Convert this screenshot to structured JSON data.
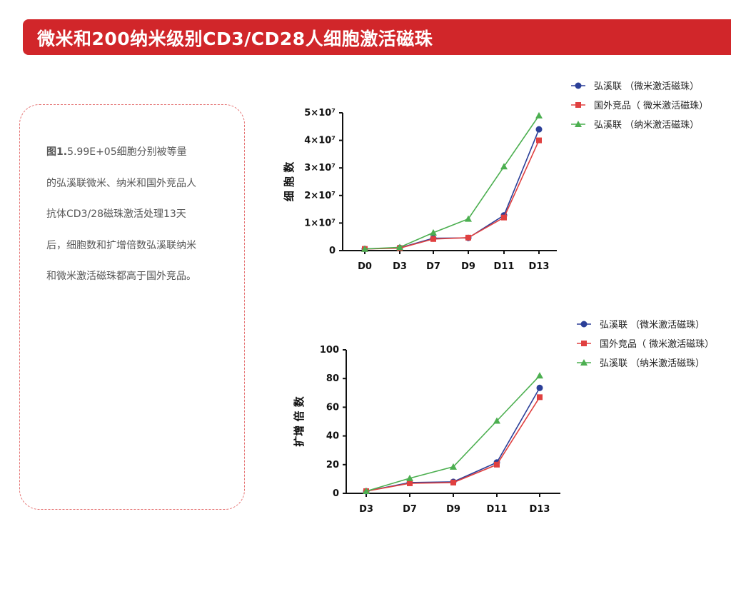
{
  "header": {
    "title": "微米和200纳米级别CD3/CD28人细胞激活磁珠"
  },
  "caption": {
    "prefix": "图1.",
    "text": "5.99E+05细胞分别被等量的弘溪联微米、纳米和国外竞品人抗体CD3/28磁珠激活处理13天后，细胞数和扩增倍数弘溪联纳米和微米激活磁珠都高于国外竞品。"
  },
  "colors": {
    "banner": "#d1262a",
    "blue": "#2b3f98",
    "red": "#e04040",
    "green": "#4caf50"
  },
  "chart_data": [
    {
      "type": "line",
      "ylabel": "细 胞 数",
      "categories": [
        "D0",
        "D3",
        "D7",
        "D9",
        "D11",
        "D13"
      ],
      "ylim": [
        0,
        50000000
      ],
      "yticks": [
        "0",
        "1×10⁷",
        "2×10⁷",
        "3×10⁷",
        "4×10⁷",
        "5×10⁷"
      ],
      "legend_position": "top-right",
      "series": [
        {
          "name": "弘溪联 （微米激活磁珠）",
          "marker": "circle",
          "color": "#2b3f98",
          "values": [
            599000,
            1000000,
            4500000,
            4600000,
            12800000,
            44000000
          ]
        },
        {
          "name": "国外竞品（ 微米激活磁珠）",
          "marker": "square",
          "color": "#e04040",
          "values": [
            599000,
            900000,
            4200000,
            4700000,
            12000000,
            40000000
          ]
        },
        {
          "name": "弘溪联 （纳米激活磁珠）",
          "marker": "triangle",
          "color": "#4caf50",
          "values": [
            599000,
            1200000,
            6500000,
            11500000,
            30500000,
            49000000
          ]
        }
      ]
    },
    {
      "type": "line",
      "ylabel": "扩增 倍 数",
      "categories": [
        "D3",
        "D7",
        "D9",
        "D11",
        "D13"
      ],
      "ylim": [
        0,
        100
      ],
      "yticks": [
        "0",
        "20",
        "40",
        "60",
        "80",
        "100"
      ],
      "legend_position": "top-right",
      "series": [
        {
          "name": "弘溪联 （微米激活磁珠）",
          "marker": "circle",
          "color": "#2b3f98",
          "values": [
            1.5,
            7.5,
            8,
            21.5,
            73.5
          ]
        },
        {
          "name": "国外竞品（ 微米激活磁珠）",
          "marker": "square",
          "color": "#e04040",
          "values": [
            1.5,
            7,
            7.5,
            20,
            67
          ]
        },
        {
          "name": "弘溪联 （纳米激活磁珠）",
          "marker": "triangle",
          "color": "#4caf50",
          "values": [
            1.5,
            10.5,
            18.5,
            50.5,
            82
          ]
        }
      ]
    }
  ]
}
